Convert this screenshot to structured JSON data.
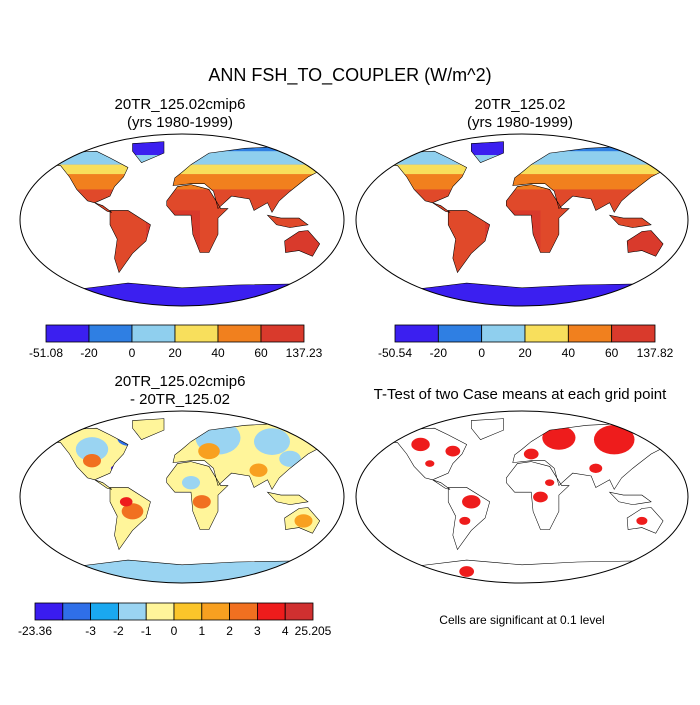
{
  "header": {
    "title": "ANN FSH_TO_COUPLER (W/m^2)"
  },
  "panels": [
    {
      "title": [
        "20TR_125.02cmip6",
        "(yrs 1980-1999)"
      ],
      "colorbar": {
        "labels": [
          "-51.08",
          "-20",
          "0",
          "20",
          "40",
          "60",
          "137.23"
        ],
        "colors": [
          "#3b1ff0",
          "#2f7fe3",
          "#8fcfee",
          "#f8df5c",
          "#f1801e",
          "#d93a2c"
        ]
      }
    },
    {
      "title": [
        "20TR_125.02",
        "(yrs 1980-1999)"
      ],
      "colorbar": {
        "labels": [
          "-50.54",
          "-20",
          "0",
          "20",
          "40",
          "60",
          "137.82"
        ],
        "colors": [
          "#3b1ff0",
          "#2f7fe3",
          "#8fcfee",
          "#f8df5c",
          "#f1801e",
          "#d93a2c"
        ]
      }
    },
    {
      "title": [
        "20TR_125.02cmip6",
        "- 20TR_125.02"
      ],
      "colorbar": {
        "labels": [
          "-23.36",
          "-3",
          "-2",
          "-1",
          "0",
          "1",
          "2",
          "3",
          "4",
          "25.205"
        ],
        "colors": [
          "#3a1cf0",
          "#2f6fe8",
          "#1aa8f0",
          "#9ad4f2",
          "#fff59a",
          "#fbc52a",
          "#f8a020",
          "#f17020",
          "#ee1c1c",
          "#d03030"
        ]
      }
    },
    {
      "title": [
        "T-Test of two Case means at each grid point"
      ],
      "note": "Cells are significant at 0.1 level"
    }
  ]
}
